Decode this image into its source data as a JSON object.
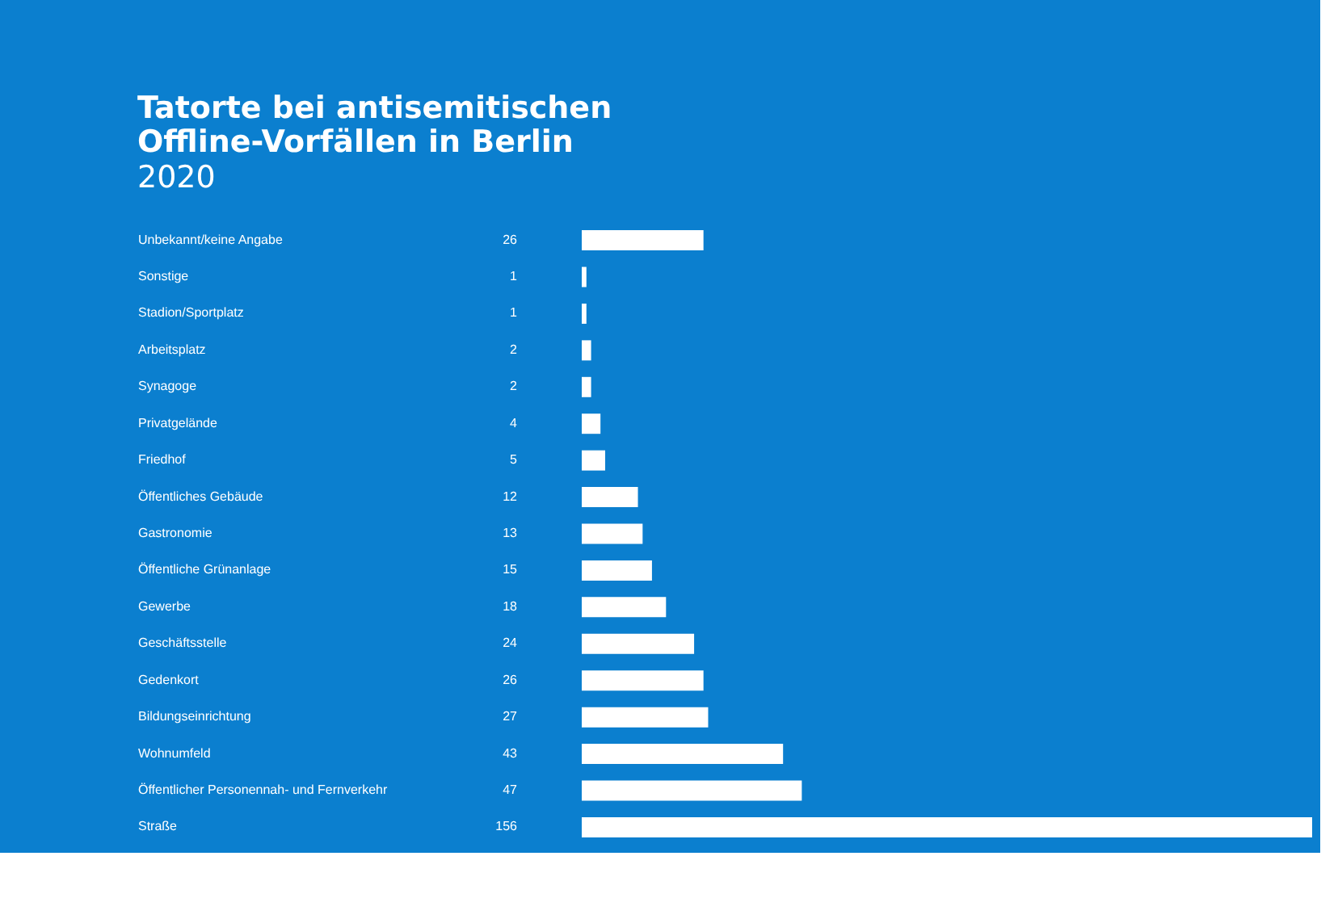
{
  "chart_data": {
    "type": "bar",
    "orientation": "horizontal",
    "title": [
      "Tatorte bei antisemitischen",
      "Offline-Vorfällen in Berlin"
    ],
    "subtitle": "2020",
    "categories": [
      "Unbekannt/keine Angabe",
      "Sonstige",
      "Stadion/Sportplatz",
      "Arbeitsplatz",
      "Synagoge",
      "Privatgelände",
      "Friedhof",
      "Öffentliches Gebäude",
      "Gastronomie",
      "Öffentliche Grünanlage",
      "Gewerbe",
      "Geschäftsstelle",
      "Gedenkort",
      "Bildungseinrichtung",
      "Wohnumfeld",
      "Öffentlicher Personennah- und Fernverkehr",
      "Straße"
    ],
    "values": [
      26,
      1,
      1,
      2,
      2,
      4,
      5,
      12,
      13,
      15,
      18,
      24,
      26,
      27,
      43,
      47,
      156
    ],
    "color": "#ffffff",
    "data_labels": true,
    "grid": false
  }
}
